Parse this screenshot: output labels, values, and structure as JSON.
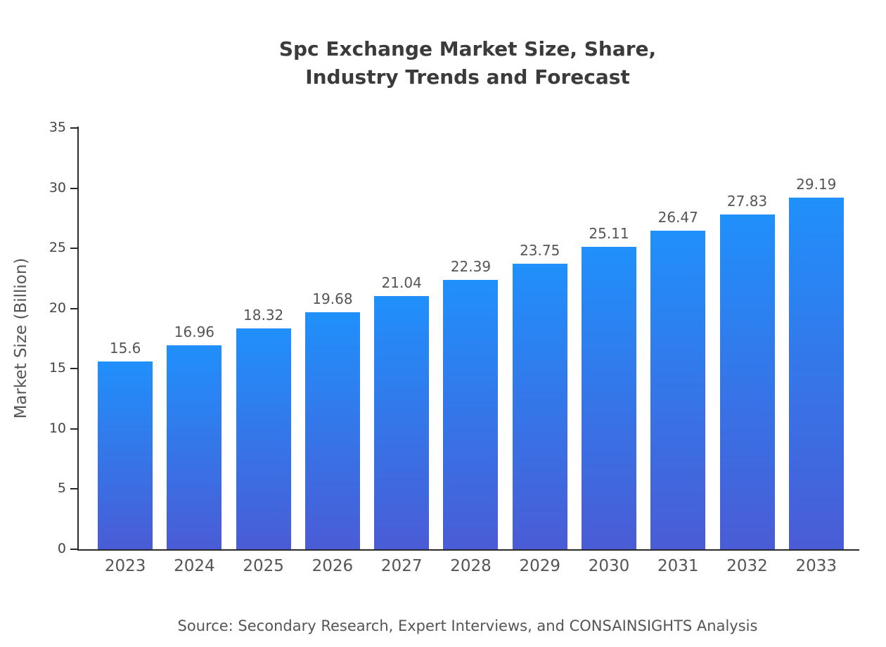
{
  "chart": {
    "title_line1": "Spc Exchange Market Size, Share,",
    "title_line2": "Industry Trends and Forecast",
    "ylabel": "Market Size (Billion)",
    "source": "Source: Secondary Research, Expert Interviews, and CONSAINSIGHTS Analysis"
  },
  "chart_data": {
    "type": "bar",
    "title": "Spc Exchange Market Size, Share, Industry Trends and Forecast",
    "categories": [
      "2023",
      "2024",
      "2025",
      "2026",
      "2027",
      "2028",
      "2029",
      "2030",
      "2031",
      "2032",
      "2033"
    ],
    "values": [
      15.6,
      16.96,
      18.32,
      19.68,
      21.04,
      22.39,
      23.75,
      25.11,
      26.47,
      27.83,
      29.19
    ],
    "xlabel": "",
    "ylabel": "Market Size (Billion)",
    "ylim": [
      0,
      35
    ],
    "yticks": [
      0,
      5,
      10,
      15,
      20,
      25,
      30,
      35
    ],
    "grid": false,
    "legend": "none",
    "bar_gradient": {
      "top": "#2090fb",
      "bottom": "#4a5cd6"
    },
    "axis_color": "#2a2a2a",
    "label_color": "#555555",
    "source": "Source: Secondary Research, Expert Interviews, and CONSAINSIGHTS Analysis"
  }
}
